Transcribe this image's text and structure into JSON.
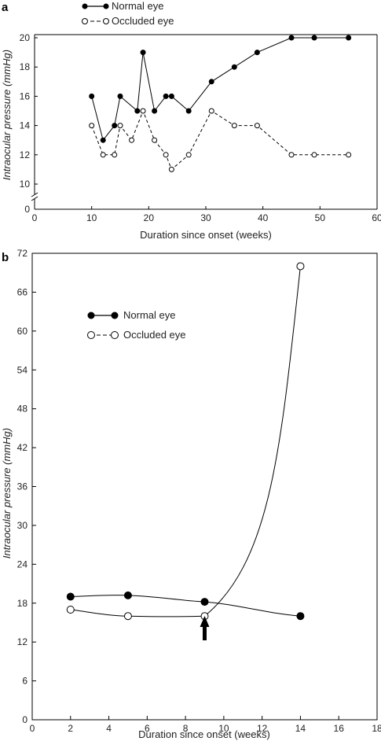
{
  "chart_data": [
    {
      "panel_label": "a",
      "type": "line",
      "xlabel": "Duration since onset (weeks)",
      "ylabel": "Intraocular pressure (mmHg)",
      "xlim": [
        0,
        60
      ],
      "ylim": [
        0,
        20
      ],
      "y_axis_break": [
        0,
        10
      ],
      "xticks": [
        "0",
        "10",
        "20",
        "30",
        "40",
        "50",
        "60"
      ],
      "yticks": [
        "0",
        "10",
        "12",
        "14",
        "16",
        "18",
        "20"
      ],
      "legend_position": "top-left, above plot",
      "series": [
        {
          "name": "Normal eye",
          "marker": "filled",
          "line": "solid",
          "points": [
            [
              10,
              16
            ],
            [
              12,
              13
            ],
            [
              14,
              14
            ],
            [
              15,
              16
            ],
            [
              18,
              15
            ],
            [
              19,
              19
            ],
            [
              21,
              15
            ],
            [
              23,
              16
            ],
            [
              24,
              16
            ],
            [
              27,
              15
            ],
            [
              31,
              17
            ],
            [
              35,
              18
            ],
            [
              39,
              19
            ],
            [
              45,
              20
            ],
            [
              49,
              20
            ],
            [
              55,
              20
            ]
          ]
        },
        {
          "name": "Occluded eye",
          "marker": "open",
          "line": "dashed",
          "points": [
            [
              10,
              14
            ],
            [
              12,
              12
            ],
            [
              14,
              12
            ],
            [
              15,
              14
            ],
            [
              17,
              13
            ],
            [
              19,
              15
            ],
            [
              21,
              13
            ],
            [
              23,
              12
            ],
            [
              24,
              11
            ],
            [
              27,
              12
            ],
            [
              31,
              15
            ],
            [
              35,
              14
            ],
            [
              39,
              14
            ],
            [
              45,
              12
            ],
            [
              49,
              12
            ],
            [
              55,
              12
            ]
          ]
        }
      ]
    },
    {
      "panel_label": "b",
      "type": "line",
      "xlabel": "Duration since onset (weeks)",
      "ylabel": "Intraocular pressure (mmHg)",
      "xlim": [
        0,
        18
      ],
      "ylim": [
        0,
        72
      ],
      "xticks": [
        "0",
        "2",
        "4",
        "6",
        "8",
        "10",
        "12",
        "14",
        "16",
        "18"
      ],
      "yticks": [
        "0",
        "6",
        "12",
        "18",
        "24",
        "30",
        "36",
        "42",
        "48",
        "54",
        "60",
        "66",
        "72"
      ],
      "legend_position": "upper-left, inside plot",
      "arrow_annotation_x": 9,
      "series": [
        {
          "name": "Normal eye",
          "marker": "filled",
          "line": "solid",
          "points": [
            [
              2,
              19
            ],
            [
              5,
              19.2
            ],
            [
              9,
              18.2
            ],
            [
              14,
              16
            ]
          ]
        },
        {
          "name": "Occluded eye",
          "marker": "open",
          "line": "solid",
          "points": [
            [
              2,
              17
            ],
            [
              5,
              16
            ],
            [
              9,
              16
            ],
            [
              14,
              70
            ]
          ]
        }
      ]
    }
  ]
}
